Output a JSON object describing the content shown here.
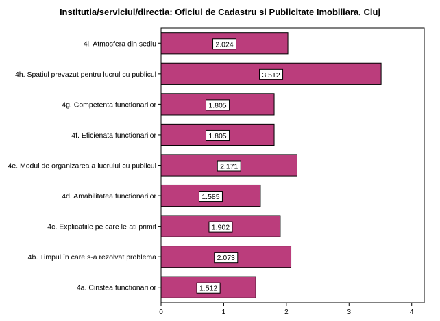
{
  "chart_data": {
    "type": "bar",
    "orientation": "horizontal",
    "title": "Institutia/serviciul/directia: Oficiul de Cadastru si Publicitate Imobiliara, Cluj",
    "categories": [
      "4i. Atmosfera din sediu",
      "4h. Spatiul prevazut pentru lucrul cu publicul",
      "4g. Competenta functionarilor",
      "4f. Eficienata functionarilor",
      "4e. Modul de organizarea a lucrului cu publicul",
      "4d. Amabilitatea functionarilor",
      "4c. Explicatiile pe care le-ati primit",
      "4b. Timpul în care s-a rezolvat problema",
      "4a. Cinstea functionarilor"
    ],
    "values": [
      2.024,
      3.512,
      1.805,
      1.805,
      2.171,
      1.585,
      1.902,
      2.073,
      1.512
    ],
    "data_labels": [
      "2.024",
      "3.512",
      "1.805",
      "1.805",
      "2.171",
      "1.585",
      "1.902",
      "2.073",
      "1.512"
    ],
    "xlim": [
      0,
      4.2
    ],
    "xticks": [
      "0",
      "1",
      "2",
      "3",
      "4"
    ],
    "xtick_values": [
      0,
      1,
      2,
      3,
      4
    ],
    "xlabel": "",
    "ylabel": "",
    "grid": false,
    "bar_color": "#bb3d7c",
    "bar_edge_color": "#000000"
  }
}
